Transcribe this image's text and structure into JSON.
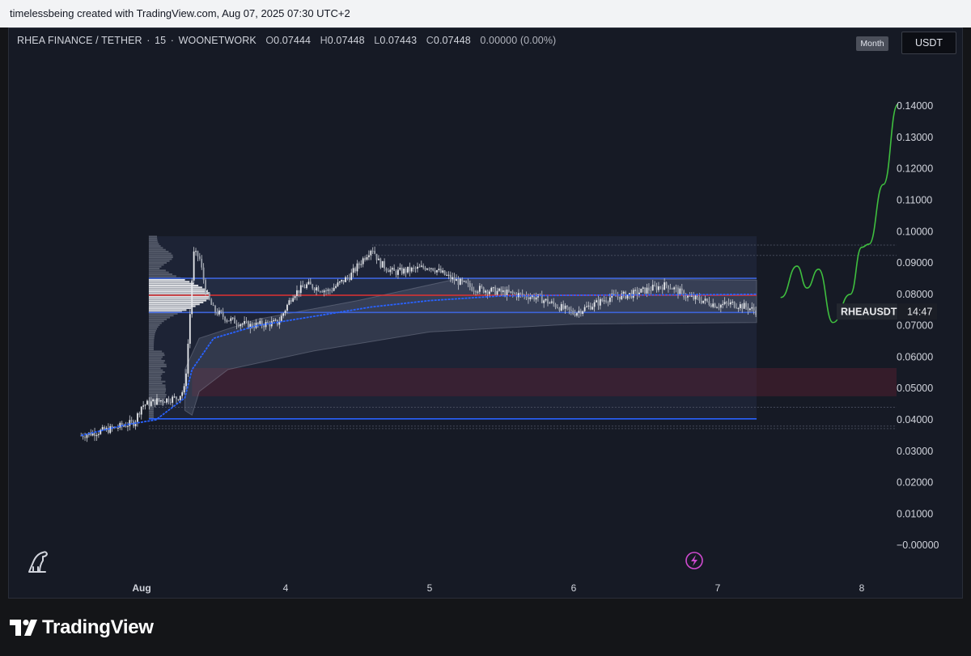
{
  "header": {
    "attribution": "timelessbeing created with TradingView.com, Aug 07, 2025 07:30 UTC+2"
  },
  "legend": {
    "symbol": "RHEA FINANCE / TETHER",
    "interval": "15",
    "exchange": "WOONETWORK",
    "open_label": "O",
    "open": "0.07444",
    "high_label": "H",
    "high": "0.07448",
    "low_label": "L",
    "low": "0.07443",
    "close_label": "C",
    "close": "0.07448",
    "change": "0.00000 (0.00%)"
  },
  "toolbar": {
    "period_label": "Month",
    "currency_label": "USDT"
  },
  "price_tag": {
    "symbol": "RHEAUSDT",
    "countdown": "14:47"
  },
  "footer": {
    "brand": "TradingView"
  },
  "colors": {
    "background": "#161a25",
    "candles": "#c7cad1",
    "vwap": "#2962ff",
    "poc_line": "#e03232",
    "value_area": "#3d63d8",
    "projection": "#3fbf3f",
    "supply_zone": "#5a2030"
  },
  "icons": [
    "dino-icon",
    "lightning-icon",
    "tradingview-logo-icon"
  ],
  "chart_data": {
    "type": "candlestick",
    "y_axis": {
      "ticks": [
        0.14,
        0.13,
        0.12,
        0.11,
        0.1,
        0.09,
        0.08,
        0.07,
        0.06,
        0.05,
        0.04,
        0.03,
        0.02,
        0.01,
        0.0
      ],
      "tick_labels": [
        "0.14000",
        "0.13000",
        "0.12000",
        "0.11000",
        "0.10000",
        "0.09000",
        "0.08000",
        "0.07000",
        "0.06000",
        "0.05000",
        "0.04000",
        "0.03000",
        "0.02000",
        "0.01000",
        "−0.00000"
      ],
      "ylim": [
        -0.0015,
        0.1475
      ]
    },
    "x_axis": {
      "ticks": [
        0,
        1,
        2,
        3,
        4,
        5
      ],
      "tick_labels": [
        "Aug",
        "4",
        "5",
        "6",
        "7",
        "8"
      ],
      "xlim": [
        -0.42,
        5.25
      ]
    },
    "price_path": [
      [
        -0.42,
        0.035
      ],
      [
        -0.2,
        0.0372
      ],
      [
        -0.05,
        0.0392
      ],
      [
        0.0,
        0.0445
      ],
      [
        0.1,
        0.046
      ],
      [
        0.25,
        0.047
      ],
      [
        0.3,
        0.05
      ],
      [
        0.33,
        0.069
      ],
      [
        0.36,
        0.093
      ],
      [
        0.4,
        0.092
      ],
      [
        0.45,
        0.08
      ],
      [
        0.5,
        0.075
      ],
      [
        0.6,
        0.072
      ],
      [
        0.75,
        0.07
      ],
      [
        0.85,
        0.0705
      ],
      [
        0.95,
        0.071
      ],
      [
        1.05,
        0.08
      ],
      [
        1.15,
        0.083
      ],
      [
        1.3,
        0.081
      ],
      [
        1.45,
        0.086
      ],
      [
        1.55,
        0.092
      ],
      [
        1.6,
        0.095
      ],
      [
        1.65,
        0.09
      ],
      [
        1.75,
        0.087
      ],
      [
        1.9,
        0.088
      ],
      [
        2.0,
        0.089
      ],
      [
        2.15,
        0.085
      ],
      [
        2.3,
        0.082
      ],
      [
        2.45,
        0.081
      ],
      [
        2.6,
        0.08
      ],
      [
        2.75,
        0.079
      ],
      [
        2.9,
        0.076
      ],
      [
        3.0,
        0.074
      ],
      [
        3.1,
        0.076
      ],
      [
        3.25,
        0.079
      ],
      [
        3.4,
        0.08
      ],
      [
        3.55,
        0.082
      ],
      [
        3.65,
        0.083
      ],
      [
        3.8,
        0.079
      ],
      [
        3.9,
        0.078
      ],
      [
        4.0,
        0.0765
      ],
      [
        4.1,
        0.077
      ],
      [
        4.2,
        0.076
      ],
      [
        4.27,
        0.0745
      ]
    ],
    "vwap_path": [
      [
        -0.42,
        0.035
      ],
      [
        -0.1,
        0.0385
      ],
      [
        0.1,
        0.04
      ],
      [
        0.3,
        0.047
      ],
      [
        0.35,
        0.056
      ],
      [
        0.5,
        0.066
      ],
      [
        0.8,
        0.07
      ],
      [
        1.2,
        0.073
      ],
      [
        1.6,
        0.076
      ],
      [
        2.0,
        0.078
      ],
      [
        2.5,
        0.0795
      ],
      [
        3.0,
        0.0797
      ],
      [
        3.5,
        0.0798
      ],
      [
        4.0,
        0.0799
      ],
      [
        4.27,
        0.08
      ]
    ],
    "levels": {
      "value_area_high": 0.0851,
      "poc": 0.0797,
      "value_area_low": 0.0742,
      "range_high": 0.0985,
      "range_low": 0.0403,
      "supply_zone": [
        0.0475,
        0.0565
      ]
    },
    "projection_path": [
      [
        4.44,
        0.079
      ],
      [
        4.55,
        0.089
      ],
      [
        4.62,
        0.082
      ],
      [
        4.7,
        0.088
      ],
      [
        4.8,
        0.071
      ],
      [
        4.92,
        0.08
      ],
      [
        5.0,
        0.095
      ],
      [
        5.05,
        0.096
      ],
      [
        5.15,
        0.115
      ],
      [
        5.25,
        0.1405
      ]
    ],
    "grid": false
  }
}
